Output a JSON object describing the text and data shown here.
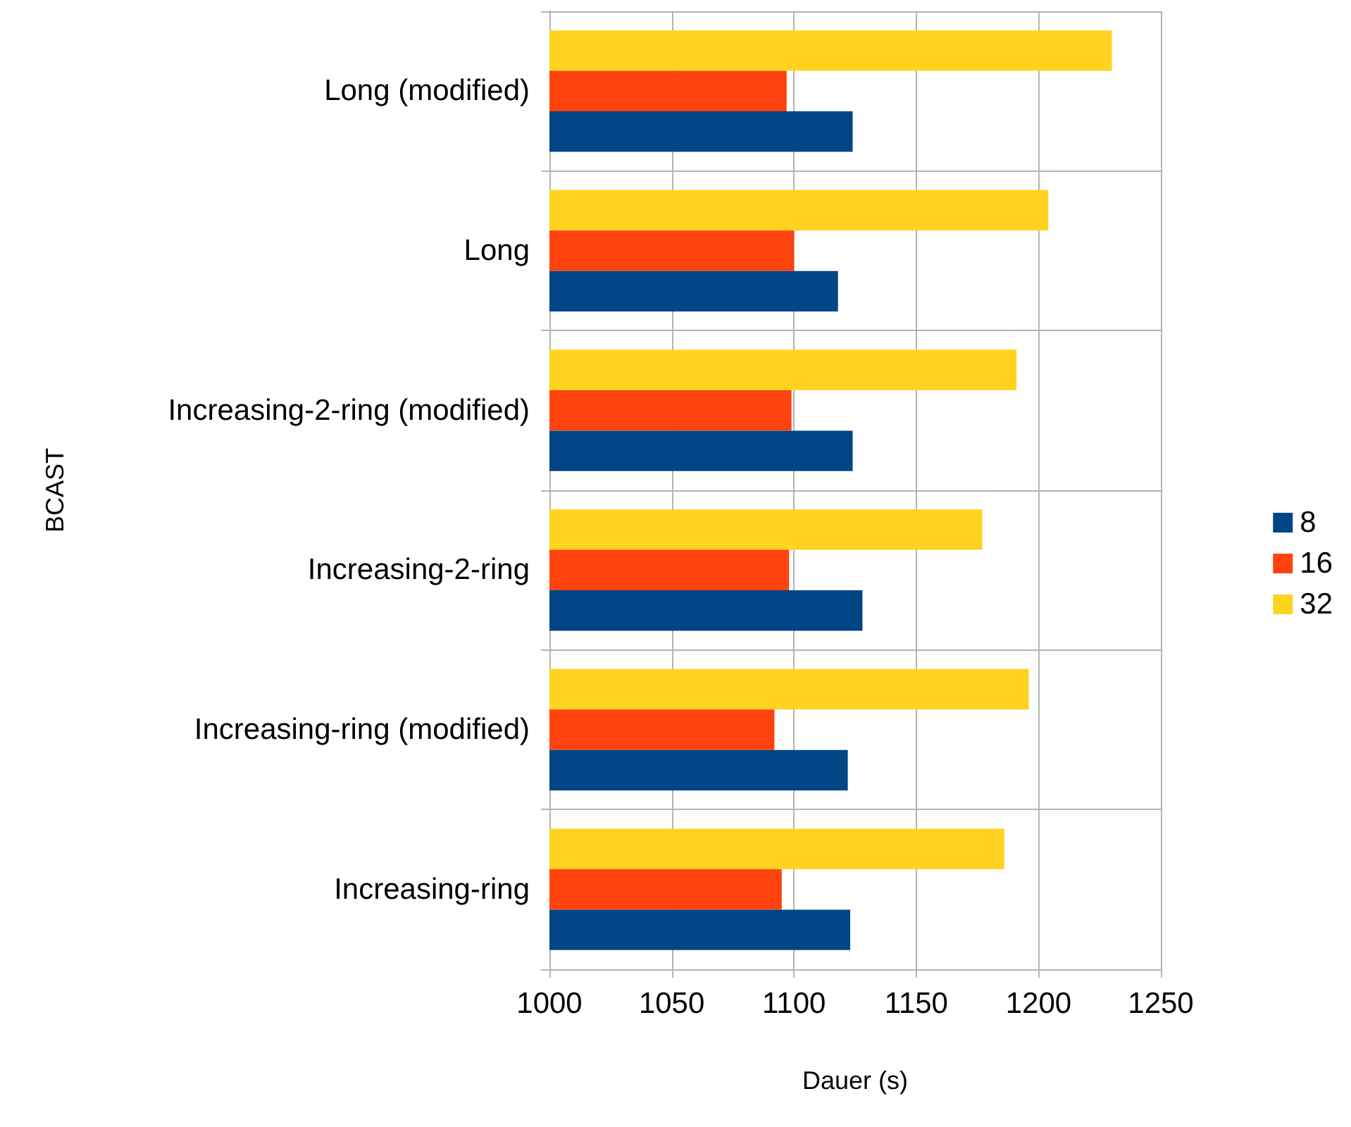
{
  "chart_data": {
    "type": "bar",
    "orientation": "horizontal",
    "xlabel": "Dauer (s)",
    "ylabel": "BCAST",
    "categories": [
      "Long (modified)",
      "Long",
      "Increasing-2-ring (modified)",
      "Increasing-2-ring",
      "Increasing-ring (modified)",
      "Increasing-ring"
    ],
    "series": [
      {
        "name": "8",
        "color": "#004586",
        "values": [
          1124,
          1118,
          1124,
          1128,
          1122,
          1123
        ]
      },
      {
        "name": "16",
        "color": "#ff420e",
        "values": [
          1097,
          1100,
          1099,
          1098,
          1092,
          1095
        ]
      },
      {
        "name": "32",
        "color": "#ffd320",
        "values": [
          1230,
          1204,
          1191,
          1177,
          1196,
          1186
        ]
      }
    ],
    "xlim": [
      1000,
      1250
    ],
    "xticks": [
      1000,
      1050,
      1100,
      1150,
      1200,
      1250
    ],
    "grid": true,
    "legend": "right"
  }
}
